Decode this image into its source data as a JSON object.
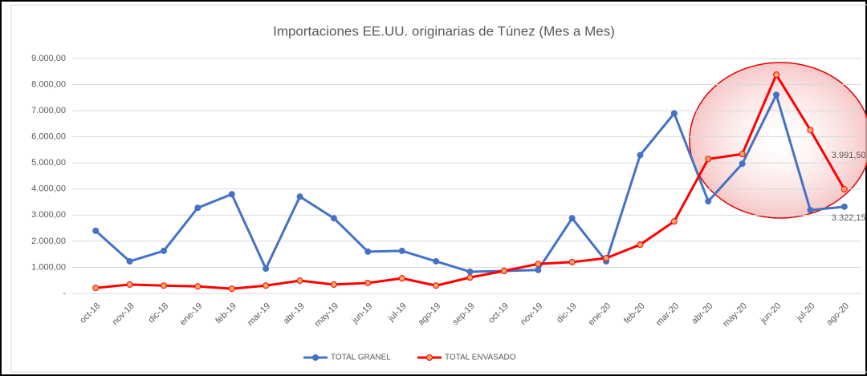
{
  "chart_data": {
    "type": "line",
    "title": "Importaciones EE.UU. originarias de Túnez (Mes a Mes)",
    "categories": [
      "oct-18",
      "nov-18",
      "dic-18",
      "ene-19",
      "feb-19",
      "mar-19",
      "abr-19",
      "may-19",
      "jun-19",
      "jul-19",
      "ago-19",
      "sep-19",
      "oct-19",
      "nov-19",
      "dic-19",
      "ene-20",
      "feb-20",
      "mar-20",
      "abr-20",
      "may-20",
      "jun-20",
      "jul-20",
      "ago-20"
    ],
    "series": [
      {
        "name": "TOTAL GRANEL",
        "color": "#4472c4",
        "values": [
          2400,
          1230,
          1630,
          3280,
          3800,
          950,
          3710,
          2880,
          1600,
          1630,
          1230,
          830,
          860,
          900,
          2880,
          1230,
          5300,
          6900,
          3530,
          4970,
          7610,
          3190,
          3322.15
        ],
        "value_labels": [
          null,
          null,
          null,
          null,
          null,
          null,
          null,
          null,
          null,
          null,
          null,
          null,
          null,
          null,
          null,
          null,
          null,
          null,
          null,
          null,
          null,
          null,
          "3.322,15"
        ]
      },
      {
        "name": "TOTAL ENVASADO",
        "color": "#ff0000",
        "values": [
          210,
          340,
          300,
          270,
          180,
          300,
          490,
          340,
          400,
          580,
          300,
          610,
          860,
          1130,
          1200,
          1350,
          1870,
          2760,
          5150,
          5340,
          8380,
          6260,
          3991.5
        ],
        "value_labels": [
          null,
          null,
          null,
          null,
          null,
          null,
          null,
          null,
          null,
          null,
          null,
          null,
          null,
          null,
          null,
          null,
          null,
          null,
          null,
          null,
          null,
          null,
          "3.991,50"
        ]
      }
    ],
    "ylim": [
      0,
      9000
    ],
    "yticks": [
      {
        "value": 0,
        "label": "-"
      },
      {
        "value": 1000,
        "label": "1.000,00"
      },
      {
        "value": 2000,
        "label": "2.000,00"
      },
      {
        "value": 3000,
        "label": "3.000,00"
      },
      {
        "value": 4000,
        "label": "4.000,00"
      },
      {
        "value": 5000,
        "label": "5.000,00"
      },
      {
        "value": 6000,
        "label": "6.000,00"
      },
      {
        "value": 7000,
        "label": "7.000,00"
      },
      {
        "value": 8000,
        "label": "8.000,00"
      },
      {
        "value": 9000,
        "label": "9.000,00"
      }
    ],
    "grid": true,
    "legend": "bottom"
  }
}
